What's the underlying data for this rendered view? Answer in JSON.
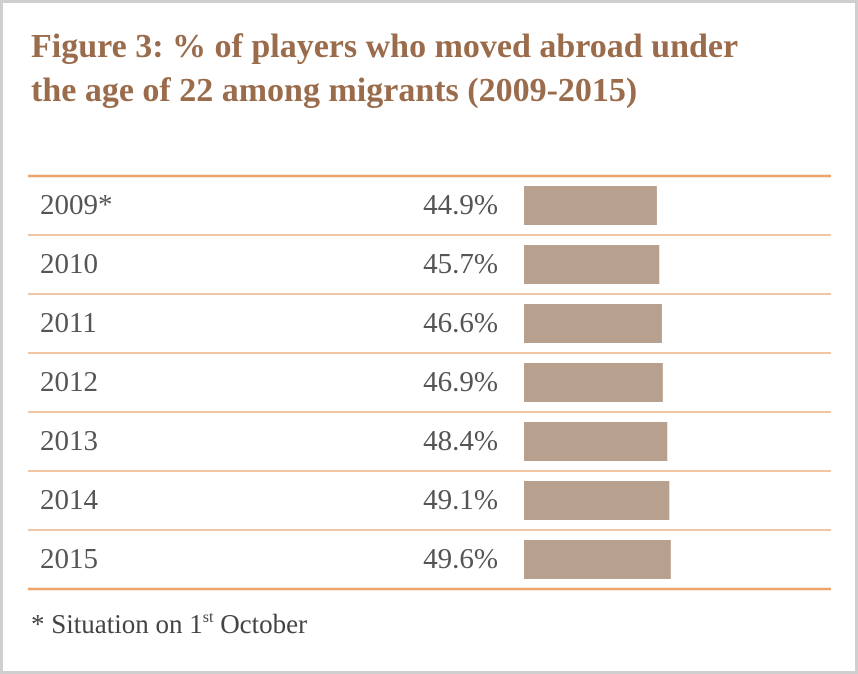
{
  "chart_data": {
    "type": "bar",
    "orientation": "horizontal",
    "title": "Figure 3: % of players who moved abroad under the age of 22 among migrants (2009-2015)",
    "categories": [
      "2009*",
      "2010",
      "2011",
      "2012",
      "2013",
      "2014",
      "2015"
    ],
    "values": [
      44.9,
      45.7,
      46.6,
      46.9,
      48.4,
      49.1,
      49.6
    ],
    "value_labels": [
      "44.9%",
      "45.7%",
      "46.6%",
      "46.9%",
      "48.4%",
      "49.1%",
      "49.6%"
    ],
    "color": "#b8a08e",
    "note": [
      "* Situation on 1",
      "st",
      " October"
    ]
  }
}
